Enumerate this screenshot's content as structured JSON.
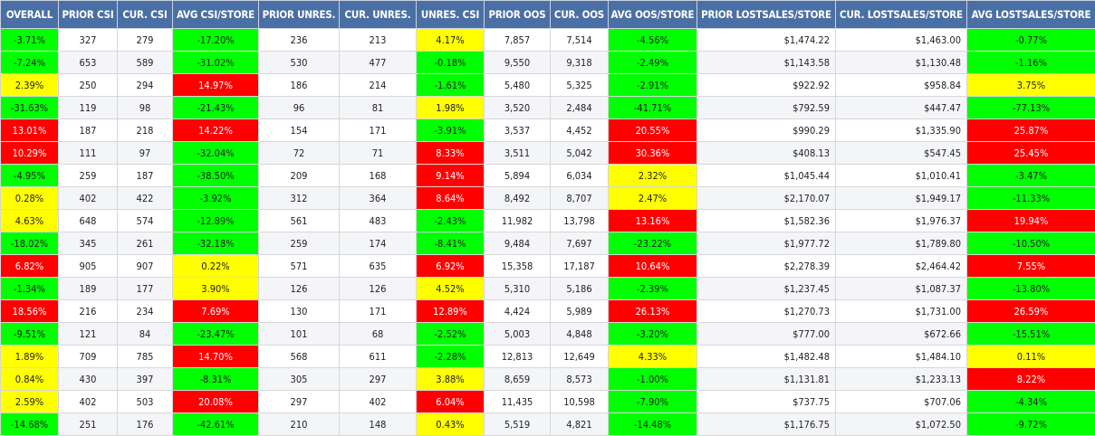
{
  "colors": {
    "header_bg": "#4a6fa5",
    "green": "#00ff00",
    "yellow": "#ffff00",
    "red": "#ff0000"
  },
  "columns": [
    "OVERALL",
    "PRIOR CSI",
    "CUR. CSI",
    "AVG CSI/STORE",
    "PRIOR UNRES.",
    "CUR. UNRES.",
    "UNRES. CSI",
    "PRIOR OOS",
    "CUR. OOS",
    "AVG OOS/STORE",
    "PRIOR LOSTSALES/STORE",
    "CUR. LOSTSALES/STORE",
    "AVG LOSTSALES/STORE"
  ],
  "rows": [
    {
      "cells": [
        "-3.71%",
        "327",
        "279",
        "-17.20%",
        "236",
        "213",
        "4.17%",
        "7,857",
        "7,514",
        "-4.56%",
        "$1,474.22",
        "$1,463.00",
        "-0.77%"
      ],
      "colors": [
        "green",
        "",
        "",
        "green",
        "",
        "",
        "yellow",
        "",
        "",
        "green",
        "",
        "",
        "green"
      ]
    },
    {
      "cells": [
        "-7.24%",
        "653",
        "589",
        "-31.02%",
        "530",
        "477",
        "-0.18%",
        "9,550",
        "9,318",
        "-2.49%",
        "$1,143.58",
        "$1,130.48",
        "-1.16%"
      ],
      "colors": [
        "green",
        "",
        "",
        "green",
        "",
        "",
        "green",
        "",
        "",
        "green",
        "",
        "",
        "green"
      ]
    },
    {
      "cells": [
        "2.39%",
        "250",
        "294",
        "14.97%",
        "186",
        "214",
        "-1.61%",
        "5,480",
        "5,325",
        "-2.91%",
        "$922.92",
        "$958.84",
        "3.75%"
      ],
      "colors": [
        "yellow",
        "",
        "",
        "red",
        "",
        "",
        "green",
        "",
        "",
        "green",
        "",
        "",
        "yellow"
      ]
    },
    {
      "cells": [
        "-31.63%",
        "119",
        "98",
        "-21.43%",
        "96",
        "81",
        "1.98%",
        "3,520",
        "2,484",
        "-41.71%",
        "$792.59",
        "$447.47",
        "-77.13%"
      ],
      "colors": [
        "green",
        "",
        "",
        "green",
        "",
        "",
        "yellow",
        "",
        "",
        "green",
        "",
        "",
        "green"
      ]
    },
    {
      "cells": [
        "13.01%",
        "187",
        "218",
        "14.22%",
        "154",
        "171",
        "-3.91%",
        "3,537",
        "4,452",
        "20.55%",
        "$990.29",
        "$1,335.90",
        "25.87%"
      ],
      "colors": [
        "red",
        "",
        "",
        "red",
        "",
        "",
        "green",
        "",
        "",
        "red",
        "",
        "",
        "red"
      ]
    },
    {
      "cells": [
        "10.29%",
        "111",
        "97",
        "-32.04%",
        "72",
        "71",
        "8.33%",
        "3,511",
        "5,042",
        "30.36%",
        "$408.13",
        "$547.45",
        "25.45%"
      ],
      "colors": [
        "red",
        "",
        "",
        "green",
        "",
        "",
        "red",
        "",
        "",
        "red",
        "",
        "",
        "red"
      ]
    },
    {
      "cells": [
        "-4.95%",
        "259",
        "187",
        "-38.50%",
        "209",
        "168",
        "9.14%",
        "5,894",
        "6,034",
        "2.32%",
        "$1,045.44",
        "$1,010.41",
        "-3.47%"
      ],
      "colors": [
        "green",
        "",
        "",
        "green",
        "",
        "",
        "red",
        "",
        "",
        "yellow",
        "",
        "",
        "green"
      ]
    },
    {
      "cells": [
        "0.28%",
        "402",
        "422",
        "-3.92%",
        "312",
        "364",
        "8.64%",
        "8,492",
        "8,707",
        "2.47%",
        "$2,170.07",
        "$1,949.17",
        "-11.33%"
      ],
      "colors": [
        "yellow",
        "",
        "",
        "green",
        "",
        "",
        "red",
        "",
        "",
        "yellow",
        "",
        "",
        "green"
      ]
    },
    {
      "cells": [
        "4.63%",
        "648",
        "574",
        "-12.89%",
        "561",
        "483",
        "-2.43%",
        "11,982",
        "13,798",
        "13.16%",
        "$1,582.36",
        "$1,976.37",
        "19.94%"
      ],
      "colors": [
        "yellow",
        "",
        "",
        "green",
        "",
        "",
        "green",
        "",
        "",
        "red",
        "",
        "",
        "red"
      ]
    },
    {
      "cells": [
        "-18.02%",
        "345",
        "261",
        "-32.18%",
        "259",
        "174",
        "-8.41%",
        "9,484",
        "7,697",
        "-23.22%",
        "$1,977.72",
        "$1,789.80",
        "-10.50%"
      ],
      "colors": [
        "green",
        "",
        "",
        "green",
        "",
        "",
        "green",
        "",
        "",
        "green",
        "",
        "",
        "green"
      ]
    },
    {
      "cells": [
        "6.82%",
        "905",
        "907",
        "0.22%",
        "571",
        "635",
        "6.92%",
        "15,358",
        "17,187",
        "10.64%",
        "$2,278.39",
        "$2,464.42",
        "7.55%"
      ],
      "colors": [
        "red",
        "",
        "",
        "yellow",
        "",
        "",
        "red",
        "",
        "",
        "red",
        "",
        "",
        "red"
      ]
    },
    {
      "cells": [
        "-1.34%",
        "189",
        "177",
        "3.90%",
        "126",
        "126",
        "4.52%",
        "5,310",
        "5,186",
        "-2.39%",
        "$1,237.45",
        "$1,087.37",
        "-13.80%"
      ],
      "colors": [
        "green",
        "",
        "",
        "yellow",
        "",
        "",
        "yellow",
        "",
        "",
        "green",
        "",
        "",
        "green"
      ]
    },
    {
      "cells": [
        "18.56%",
        "216",
        "234",
        "7.69%",
        "130",
        "171",
        "12.89%",
        "4,424",
        "5,989",
        "26.13%",
        "$1,270.73",
        "$1,731.00",
        "26.59%"
      ],
      "colors": [
        "red",
        "",
        "",
        "red",
        "",
        "",
        "red",
        "",
        "",
        "red",
        "",
        "",
        "red"
      ]
    },
    {
      "cells": [
        "-9.51%",
        "121",
        "84",
        "-23.47%",
        "101",
        "68",
        "-2.52%",
        "5,003",
        "4,848",
        "-3.20%",
        "$777.00",
        "$672.66",
        "-15.51%"
      ],
      "colors": [
        "green",
        "",
        "",
        "green",
        "",
        "",
        "green",
        "",
        "",
        "green",
        "",
        "",
        "green"
      ]
    },
    {
      "cells": [
        "1.89%",
        "709",
        "785",
        "14.70%",
        "568",
        "611",
        "-2.28%",
        "12,813",
        "12,649",
        "4.33%",
        "$1,482.48",
        "$1,484.10",
        "0.11%"
      ],
      "colors": [
        "yellow",
        "",
        "",
        "red",
        "",
        "",
        "green",
        "",
        "",
        "yellow",
        "",
        "",
        "yellow"
      ]
    },
    {
      "cells": [
        "0.84%",
        "430",
        "397",
        "-8.31%",
        "305",
        "297",
        "3.88%",
        "8,659",
        "8,573",
        "-1.00%",
        "$1,131.81",
        "$1,233.13",
        "8.22%"
      ],
      "colors": [
        "yellow",
        "",
        "",
        "green",
        "",
        "",
        "yellow",
        "",
        "",
        "green",
        "",
        "",
        "red"
      ]
    },
    {
      "cells": [
        "2.59%",
        "402",
        "503",
        "20.08%",
        "297",
        "402",
        "6.04%",
        "11,435",
        "10,598",
        "-7.90%",
        "$737.75",
        "$707.06",
        "-4.34%"
      ],
      "colors": [
        "yellow",
        "",
        "",
        "red",
        "",
        "",
        "red",
        "",
        "",
        "green",
        "",
        "",
        "green"
      ]
    },
    {
      "cells": [
        "-14.68%",
        "251",
        "176",
        "-42.61%",
        "210",
        "148",
        "0.43%",
        "5,519",
        "4,821",
        "-14.48%",
        "$1,176.75",
        "$1,072.50",
        "-9.72%"
      ],
      "colors": [
        "green",
        "",
        "",
        "green",
        "",
        "",
        "yellow",
        "",
        "",
        "green",
        "",
        "",
        "green"
      ]
    }
  ]
}
